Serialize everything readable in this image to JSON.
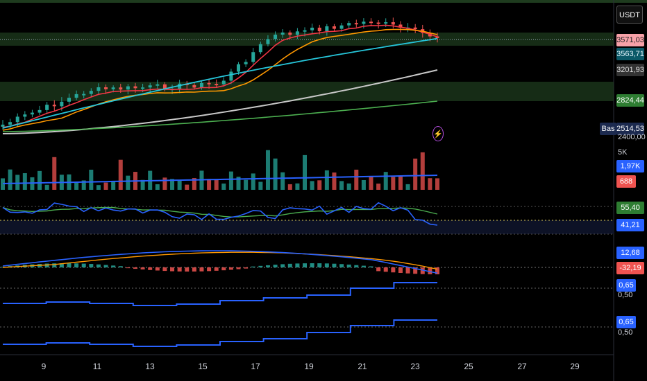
{
  "toolbar": {
    "currency": "USDT"
  },
  "chart_data": [
    {
      "type": "line",
      "pane": "price",
      "x_tick_labels": [
        "9",
        "11",
        "13",
        "15",
        "17",
        "19",
        "21",
        "23",
        "25",
        "27",
        "29"
      ],
      "price_axis_labels": [
        "2400,00"
      ],
      "last_values": {
        "price": "3571,03",
        "ma_fast": "3563,71",
        "ma_slow": "3201,93",
        "ma_long": "2824,44",
        "base": "2514,53"
      },
      "base_label": "Bas",
      "series_colors": {
        "ma1": "#f23645",
        "ma2": "#ff9800",
        "ma3": "#26c6da",
        "ma4": "#c8c8c8",
        "ma5": "#4caf50"
      },
      "zones": [
        {
          "color": "#1e3b1e"
        }
      ]
    },
    {
      "type": "bar",
      "pane": "volume",
      "axis_label": "5K",
      "last_values": {
        "volume_ma": "1,97K",
        "volume": "688"
      },
      "colors": {
        "up": "#26a69a",
        "down": "#ef5350",
        "ma": "#2962ff"
      }
    },
    {
      "type": "line",
      "pane": "rsi",
      "last_values": {
        "rsi": "41,21",
        "rsi_ma": "55,40"
      },
      "colors": {
        "rsi": "#2962ff",
        "ma": "#4caf50"
      }
    },
    {
      "type": "bar",
      "pane": "macd",
      "last_values": {
        "macd": "12,68",
        "histogram": "-32,19"
      },
      "colors": {
        "macd": "#2962ff",
        "signal": "#ff9800",
        "hist_up": "#26a69a",
        "hist_down": "#ef5350"
      }
    },
    {
      "type": "line",
      "pane": "step1",
      "last_values": {
        "value": "0,65"
      },
      "axis_label": "0,50"
    },
    {
      "type": "line",
      "pane": "step2",
      "last_values": {
        "value": "0,65"
      },
      "axis_label": "0,50"
    }
  ]
}
